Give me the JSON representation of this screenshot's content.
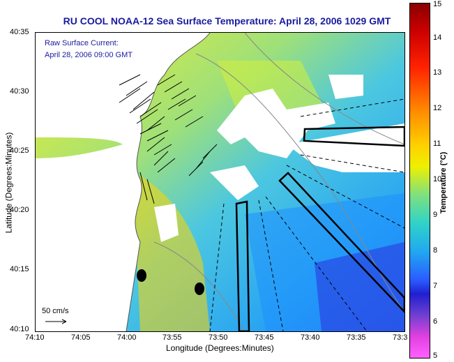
{
  "title": "RU COOL  NOAA-12  Sea Surface Temperature:  April 28, 2006 1029 GMT",
  "annotation": {
    "line1": "Raw Surface Current:",
    "line2": "April 28, 2006 09:00 GMT"
  },
  "scale_label": "50 cm/s",
  "axes": {
    "xlabel": "Longitude (Degrees:Minutes)",
    "ylabel": "Latitude (Degrees:Minutes)",
    "xticks": [
      "74:10",
      "74:05",
      "74:00",
      "73:55",
      "73:50",
      "73:45",
      "73:40",
      "73:35",
      "73:3"
    ],
    "yticks": [
      "40:35",
      "40:30",
      "40:25",
      "40:20",
      "40:15",
      "40:10"
    ]
  },
  "colorbar": {
    "title": "Temperature (°C)",
    "ticks": [
      "15",
      "14",
      "13",
      "12",
      "11",
      "10",
      "9",
      "8",
      "7",
      "6",
      "5"
    ],
    "range": [
      5,
      15
    ]
  },
  "colors": {
    "title": "#1a1aa0",
    "land": "#ffffff",
    "warm": "#ff7a1a",
    "cool": "#3aa8ff"
  }
}
